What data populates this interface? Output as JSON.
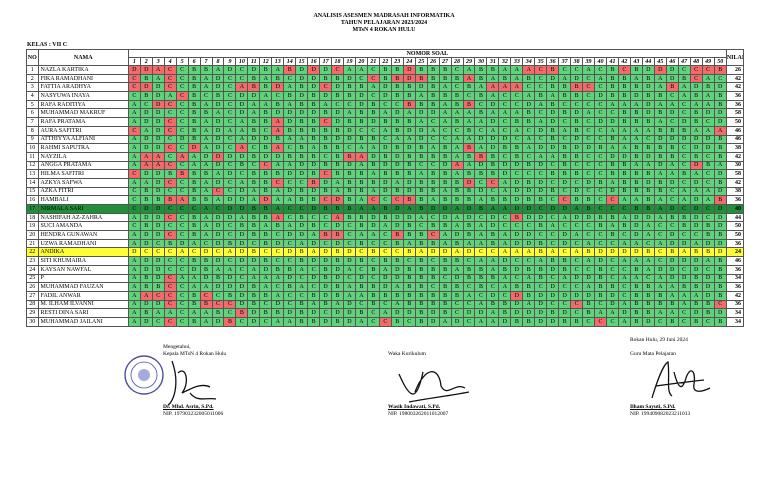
{
  "header": {
    "line1": "ANALISIS ASESMEN MADRASAH INFORMATIKA",
    "line2": "TAHUN PELAJARAN 2023/2024",
    "line3": "MTsN 4 ROKAN HULU"
  },
  "kelas": "KELAS : VII C",
  "table": {
    "col_no": "NO",
    "col_nama": "NAMA",
    "col_nomor_soal": "NOMOR SOAL",
    "col_nilai": "NILAI",
    "question_numbers": [
      "1",
      "2",
      "3",
      "4",
      "5",
      "6",
      "7",
      "8",
      "9",
      "10",
      "11",
      "12",
      "13",
      "14",
      "15",
      "16",
      "17",
      "18",
      "19",
      "20",
      "21",
      "22",
      "23",
      "24",
      "25",
      "26",
      "27",
      "28",
      "29",
      "30",
      "31",
      "32",
      "33",
      "34",
      "35",
      "36",
      "37",
      "38",
      "39",
      "40",
      "41",
      "42",
      "43",
      "44",
      "45",
      "46",
      "47",
      "48",
      "49",
      "50"
    ],
    "colors": {
      "correct": "#5fd27b",
      "wrong": "#f26b6b",
      "highlight_green": "#1f8f3a",
      "highlight_yellow": "#ffff33"
    },
    "rows": [
      {
        "no": "1",
        "nama": "NAZLA KARTIKA",
        "answers": "DDACCBBADCDBABDDDCAACBBDBBBCABBAAACBCCACBCBDDDCCCB",
        "correct": "RRRRGGGGGGGGGRGRGRGGGGGRGGGGGGGGGRRRGGGGGRGGRGGRRR",
        "nilai": "26",
        "highlight": ""
      },
      {
        "no": "2",
        "nama": "FIKA RAMADHANI",
        "answers": "CBACCBADCCBABCDDBBDCCBBDBBBBABABABCDADCABBABADBCAC",
        "correct": "RGGRGGGGGGGGGGGGGGGGRGRRRGGGRGGGGGGGGGGGGGGGGGGRGG",
        "nilai": "42",
        "highlight": ""
      },
      {
        "no": "3",
        "nama": "FATTIA ARADHYA",
        "answers": "CDDCCBADCABBDABDCDBBADBBDBACBAAAACCBBBCCBBBDABADBD",
        "correct": "RRGRGGGGGRRGRGGGRGGGGGGGGGGGGGRRRGGGGRRGGGGGGRGGGG",
        "nilai": "42",
        "highlight": ""
      },
      {
        "no": "4",
        "nasama": "",
        "nama": "NASYUWA INAYA",
        "answers": "CBDACBCBCDDACBDBDBBDCDBBABBBCBACCABABBCDBBDBBCABAB",
        "correct": "GGGGRGGGGGGGGGGGGGGGGGGGGGGGGGGGGGGGGGGGGGGGGGGGGG",
        "nilai": "36",
        "highlight": ""
      },
      {
        "no": "5",
        "nama": "RAFA RADITIYA",
        "answers": "ACDCCBADCDAABABBACCDBCCBBBABBCDCCDABCCCCAAADAACAAB",
        "correct": "GGRRGGGGGGGGGGGGGGGGGGGRGGGGRGGGGGGGGGGGGGGGGGGGGG",
        "nilai": "36",
        "highlight": ""
      },
      {
        "no": "6",
        "nama": "MUHAMMAD MAKRUF",
        "answers": "ADDCCBBACDABDDDDBDABBADADDAAABAAABCDBDACCBBDBDCBDD",
        "correct": "GGGGGGGGGGGGGGGGGGGGGGGGGGGGGGGGGGGGGGGGGGGGGGGGGG",
        "nilai": "58",
        "highlight": ""
      },
      {
        "no": "7",
        "nama": "RAFA PRATAMA",
        "answers": "ADDCCBADCABBADBBCDBBDBBBACABAADCBBADCBCDDBBBACDBCD",
        "correct": "GGGRGGGGGGGGRGGGRGGGGGGGGGGGGGGGGGGGGGGGGGGGGGGGGG",
        "nilai": "50",
        "highlight": ""
      },
      {
        "no": "8",
        "nama": "AURA SAFITRI",
        "answers": "CADCCBADAABCABBBBBDCCABDDACCBCACACDBABCCAAAABBBAAA",
        "correct": "RGGRGGGGGGGGRGGGGGGGGGGGGGGGGGGGGGGGGGGGGGGGGGGGGR",
        "nilai": "46",
        "highlight": ""
      },
      {
        "no": "9",
        "nama": "ATTHIYYA ALFIANI",
        "answers": "ADDCDBADCADDBAABBDDBBCAADCCAADDDCACBCDCCBAACDDDDDB",
        "correct": "GGGGGGGGGGGGGGGGGGGGGGGGGGGGGGGGGGGGGGGGGGGGGGGGGG",
        "nilai": "46",
        "highlight": ""
      },
      {
        "no": "10",
        "nama": "RAHMI SAPUTRA",
        "answers": "ADDCCDADCACBACBABBCAADBDBABABADBBADDBDDBAABBBBCDDB",
        "correct": "GGGRGRGGGRGGRGGGGGGGGGGGGGGGRGGGGGGGGGGGGGGGGGGGGG",
        "nilai": "38",
        "highlight": ""
      },
      {
        "no": "11",
        "nama": "NAYZILA",
        "answers": "AAACAADDDDBDDBBBCBBADBDBBBBABBBCBCAABBCCDDBDBBCBCB",
        "correct": "GRRGRGGRGGGGGGGGGGRRGGGGGGGGGRGGGGGGGGGGGGGGGGGGGG",
        "nilai": "42",
        "highlight": ""
      },
      {
        "no": "12",
        "nama": "ANGGA PRATAMA",
        "answers": "AAACCAADCBCCAADDBBDABDDBCCDAADBDDBDCBCCCBBAADACDBA",
        "correct": "GRRRGGGGGGGRGGGGGGGGGGGGGGGRGGGGGGGGGGGGGGGGGGGRGG",
        "nilai": "30",
        "highlight": ""
      },
      {
        "no": "13",
        "nama": "HILMA SAFITRI",
        "answers": "CDDBBBBADCBBBDDBCBBBABBBABBABBBDCCCBBBCCBBBBAABACD",
        "correct": "RGGGRGGGGGGGGGGGRGGGGGGGGGGGGGGGGGGGGGGGGGGGGGGGGG",
        "nilai": "58",
        "highlight": ""
      },
      {
        "no": "14",
        "nama": "AZKYA SAFWA",
        "answers": "AADCCBADCABBCCCBDABBBDADBBBBDCCADBDCDCDBABBDBDCDCB",
        "correct": "GGGRGGGGGGGGRGGRGGGGGGGGGGGGRGRGGGGGGGGGGGGGGGGGGG",
        "nilai": "42",
        "highlight": ""
      },
      {
        "no": "15",
        "nama": "AZKA FITRI",
        "answers": "CBDCCBACCDABADBDBABBADBDBBABBDCADDDBCDCCDBBBBCAAAD",
        "correct": "GGGGGGGRGGGGGGGGGGGGGGGGGGGGGGGGGGGGGGGGGGGGGGGGGG",
        "nilai": "38",
        "highlight": ""
      },
      {
        "no": "16",
        "nama": "HAMBALI",
        "answers": "CBBBABBADDADAABBCDBACCCBBABBBABBDBBCCBBCCAABACADAB",
        "correct": "GGGRRGGGGGGRGGGGRRGGRGRRGGGGGGGGGGGGRGGGRGGGGGGGGR",
        "nilai": "36",
        "highlight": ""
      },
      {
        "no": "17",
        "nama": "NIRMALA SARI",
        "answers": "CDDCCCACDDBBACCDBBBAABDABDDADBAADDCDDABCCCBBADCDCD",
        "correct": "GGGGGGGGGGGGGGGGGGGGGGGGGGGGGGGGGGGGGGGGGGGGGGGGGG",
        "nilai": "40",
        "highlight": "green"
      },
      {
        "no": "18",
        "nama": "NASHIFAH AZ-ZAHRA",
        "answers": "ADDCCBADDABBACBCCABBDBDDACDADCDCBDDCADDBBADDABBDCD",
        "correct": "GGGRGGGGGGGGRGGGGRGGGGGGGGGGGGGGRGGGGGGGGGGGGGGGGG",
        "nilai": "44",
        "highlight": ""
      },
      {
        "no": "19",
        "nama": "SUCI AMANDA",
        "answers": "CBDCCBADCBBABADBCDCBDADBCBBABADCCCBACCCBABDACCBDBD",
        "correct": "GGGGGGGGGGGGGGGGGGGGGGGGGGGGGGGGGGGGGGGGGGGGGGGGGG",
        "nilai": "50",
        "highlight": ""
      },
      {
        "no": "20",
        "nama": "HENDRA GUNAWAN",
        "answers": "ADDCCBADCDBBCDDABBCAACBBBCADBABADDCCDACCBCDACDCCBB",
        "correct": "GGGRGGGGGGGGGGGGRRGGGGRGGRGGGGGGGGGGGGGGGGGGGGGGGG",
        "nilai": "50",
        "highlight": ""
      },
      {
        "no": "21",
        "nama": "UZWA RAMADHANI",
        "answers": "ADCBDACDBDCBDCADCDCBCCBABBABAABADDBCDCACCAACADDADD",
        "correct": "GGGGGGGGGGGGGGGGGGGGGGGGGGGGGGGGGGGGGGGGGGGGGGGGGG",
        "nilai": "36",
        "highlight": ""
      },
      {
        "no": "22",
        "nama": "ANDIKA",
        "answers": "DCCCACDCADBCCDBADBDCBCCBADDADCCAAABACABDDDDBCBABBD",
        "correct": "RGRGGRGRGGGGGGGGRGRGGRGRGRGGGGGGGRGGRGGRRRGGGRGRRG",
        "nilai": "24",
        "highlight": "yellow"
      },
      {
        "no": "23",
        "nama": "SITI KHUMAIRA",
        "answers": "ADDCCBBDCDDBCCBDDBDBCBBCBCBBCAADCCABBCADCAAACDDDAB",
        "correct": "GGGGGGGGGGGGGGGGGGGGGGGGGGGGGGGGGGGGGGGGGGGGGGGGGG",
        "nilai": "46",
        "highlight": ""
      },
      {
        "no": "24",
        "nama": "KAYSAN NAWFAL",
        "answers": "ADDCCDBAACADBBACBDACBADBBBBABBABDBBDBCCBCCBADDCDCB",
        "correct": "GGGGGGGGGGGGGGGGGGGGGGGGGGGGGGGGGGGGGGGGGGGGGGGGGG",
        "nilai": "36",
        "highlight": ""
      },
      {
        "no": "25",
        "nama": "P",
        "answers": "ABDCAADBDCAAADCDBDCDCDDBBBCDBBBACABCADDBCAACADDBDB",
        "correct": "GGGRGGGGGGGGGGGGGGGGGGGGGGGGGGGGGGGGGGGGGGGGGGGGGG",
        "nilai": "34",
        "highlight": ""
      },
      {
        "no": "26",
        "nama": "MUHAMMAD FAUZAN",
        "answers": "ABBCCAADDDBACBACDBABBDABBCBBCBCABBCDCCABBCBBAABBDB",
        "correct": "GGGRGGGGGGGGGGGGGGGGGGGGGGGGGGGGGGGGGGGGGGGGGGGGGG",
        "nilai": "36",
        "highlight": ""
      },
      {
        "no": "27",
        "nama": "FADIL ANWAR",
        "answers": "AACCCBCCBDBBACCBDBAABBBBBBBBACDCDBDDDDDBDCBBBAAADB",
        "correct": "GRRRGGRGGGGGGGGGGGGGGGGGGGGGGGGGRGGGGGGGGGGGGGGGGG",
        "nilai": "42",
        "highlight": ""
      },
      {
        "no": "28",
        "nama": "M. ILHAM ILVANNI",
        "answers": "ADDCCBBCCDBCDCBABADCBCABBBBCCABBDADCCCBCDABBBBABBC",
        "correct": "GGGRGGRRRGGGGGGGGGGGGGGGGGGGGGGGGGGGGRGGGGGGGGGGGR",
        "nilai": "36",
        "highlight": ""
      },
      {
        "no": "29",
        "nama": "RESTI DINA SARI",
        "answers": "ABAACAABCBDBBDBDCDDBCADDBDBCDDABDDDBDCBAADBBAACDBD",
        "correct": "GGGGGGGGGRGGGGGGGGGGGGGGGGGGGGGGGGGGGGGGGGGGGGGGGG",
        "nilai": "34",
        "highlight": ""
      },
      {
        "no": "30",
        "nama": "MUHAMMAD JAILANI",
        "answers": "ADCCCBADBCDCAABBDBDACCBCBDADCAADBBDDBBCCCABDCBCBCB",
        "correct": "GGGRGGGGRGGGGGGGGGGGGRGGGGGGGGGGGGGGGGGRGGGGGGGGGG",
        "nilai": "34",
        "highlight": ""
      }
    ]
  },
  "footer": {
    "place_date": "Rokan Hulu, 29 Juni 2024",
    "sig1": {
      "role1": "Mengetahui,",
      "role2": "Kepala MTsN 4 Rokan Hulu",
      "name": "Dr. Mhd. Asrin, S.Pd.",
      "nip": "NIP. 197903232005011006"
    },
    "sig2": {
      "role": "Waka Kurikulum",
      "name": "Wasik Indawati, S.Pd.",
      "nip": "NIP. 198003262011012007"
    },
    "sig3": {
      "role": "Guru Mata Pelajaran",
      "name": "Ilham Sayuti, S.Pd.",
      "nip": "NIP. 199409082023211013"
    }
  }
}
